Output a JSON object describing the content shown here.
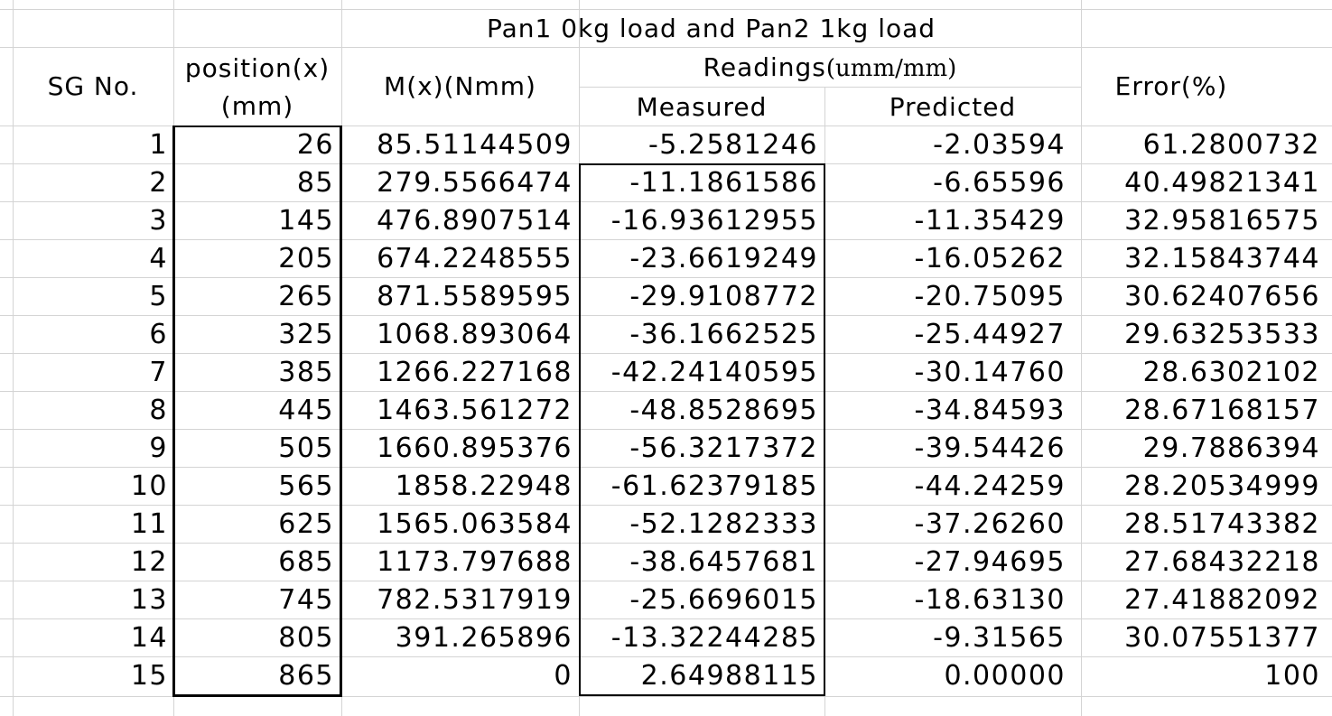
{
  "table": {
    "title": "Pan1 0kg load and Pan2 1kg load",
    "headers": {
      "sg_no": "SG No.",
      "position_line1": "position(x)",
      "position_line2": "(mm)",
      "moment": "M(x)(Nmm)",
      "readings_main": "Readings",
      "readings_unit": "(umm/mm)",
      "measured": "Measured",
      "predicted": "Predicted",
      "error": "Error(%)"
    },
    "rows": [
      [
        "1",
        "26",
        "85.51144509",
        "-5.2581246",
        "-2.03594",
        "61.2800732"
      ],
      [
        "2",
        "85",
        "279.5566474",
        "-11.1861586",
        "-6.65596",
        "40.49821341"
      ],
      [
        "3",
        "145",
        "476.8907514",
        "-16.93612955",
        "-11.35429",
        "32.95816575"
      ],
      [
        "4",
        "205",
        "674.2248555",
        "-23.6619249",
        "-16.05262",
        "32.15843744"
      ],
      [
        "5",
        "265",
        "871.5589595",
        "-29.9108772",
        "-20.75095",
        "30.62407656"
      ],
      [
        "6",
        "325",
        "1068.893064",
        "-36.1662525",
        "-25.44927",
        "29.63253533"
      ],
      [
        "7",
        "385",
        "1266.227168",
        "-42.24140595",
        "-30.14760",
        "28.6302102"
      ],
      [
        "8",
        "445",
        "1463.561272",
        "-48.8528695",
        "-34.84593",
        "28.67168157"
      ],
      [
        "9",
        "505",
        "1660.895376",
        "-56.3217372",
        "-39.54426",
        "29.7886394"
      ],
      [
        "10",
        "565",
        "1858.22948",
        "-61.62379185",
        "-44.24259",
        "28.20534999"
      ],
      [
        "11",
        "625",
        "1565.063584",
        "-52.1282333",
        "-37.26260",
        "28.51743382"
      ],
      [
        "12",
        "685",
        "1173.797688",
        "-38.6457681",
        "-27.94695",
        "27.68432218"
      ],
      [
        "13",
        "745",
        "782.5317919",
        "-25.6696015",
        "-18.63130",
        "27.41882092"
      ],
      [
        "14",
        "805",
        "391.265896",
        "-13.32244285",
        "-9.31565",
        "30.07551377"
      ],
      [
        "15",
        "865",
        "0",
        "2.64988115",
        "0.00000",
        "100"
      ]
    ]
  }
}
